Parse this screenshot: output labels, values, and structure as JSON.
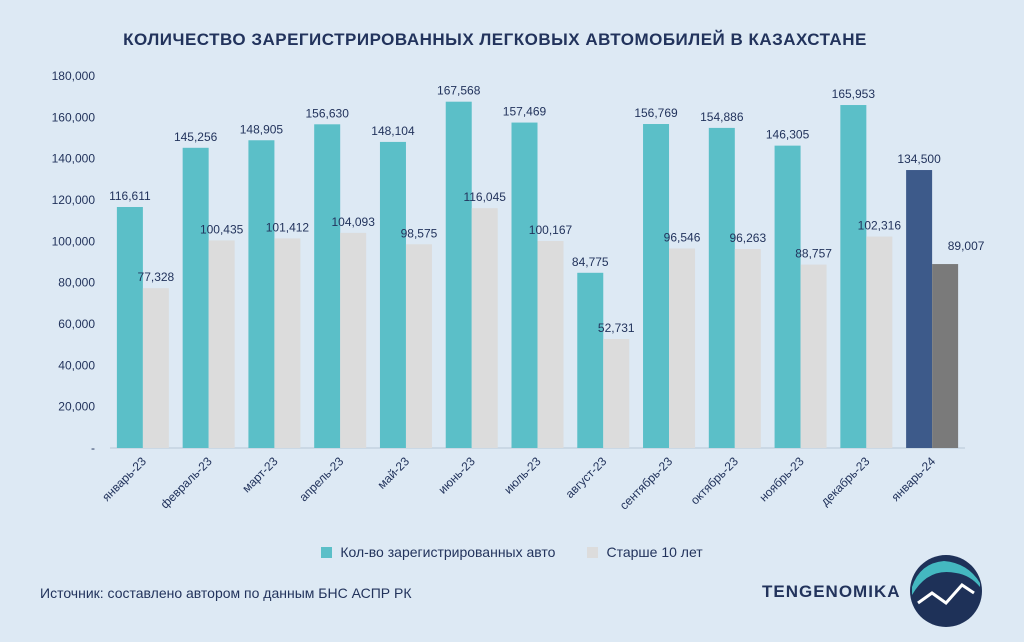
{
  "chart_data": {
    "type": "bar",
    "title": "КОЛИЧЕСТВО ЗАРЕГИСТРИРОВАННЫХ ЛЕГКОВЫХ АВТОМОБИЛЕЙ В КАЗАХСТАНЕ",
    "categories": [
      "январь-23",
      "февраль-23",
      "март-23",
      "апрель-23",
      "май-23",
      "июнь-23",
      "июль-23",
      "август-23",
      "сентябрь-23",
      "октябрь-23",
      "ноябрь-23",
      "декабрь-23",
      "январь-24"
    ],
    "series": [
      {
        "name": "Кол-во зарегистрированных авто",
        "values": [
          116611,
          145256,
          148905,
          156630,
          148104,
          167568,
          157469,
          84775,
          156769,
          154886,
          146305,
          165953,
          134500
        ],
        "labels": [
          "116,611",
          "145,256",
          "148,905",
          "156,630",
          "148,104",
          "167,568",
          "157,469",
          "84,775",
          "156,769",
          "154,886",
          "146,305",
          "165,953",
          "134,500"
        ],
        "color": "#5bbfc8",
        "highlight_color": "#3d5a8a"
      },
      {
        "name": "Старше 10 лет",
        "values": [
          77328,
          100435,
          101412,
          104093,
          98575,
          116045,
          100167,
          52731,
          96546,
          96263,
          88757,
          102316,
          89007
        ],
        "labels": [
          "77,328",
          "100,435",
          "101,412",
          "104,093",
          "98,575",
          "116,045",
          "100,167",
          "52,731",
          "96,546",
          "96,263",
          "88,757",
          "102,316",
          "89,007"
        ],
        "color": "#dcdcdc",
        "highlight_color": "#7a7a7a"
      }
    ],
    "ylim": [
      0,
      180000
    ],
    "yticks": [
      0,
      20000,
      40000,
      60000,
      80000,
      100000,
      120000,
      140000,
      160000,
      180000
    ],
    "ytick_labels": [
      "-",
      "20,000",
      "40,000",
      "60,000",
      "80,000",
      "100,000",
      "120,000",
      "140,000",
      "160,000",
      "180,000"
    ],
    "grid": false,
    "legend_position": "bottom"
  },
  "footer": {
    "source": "Источник: составлено автором по данным БНС АСПР РК",
    "brand": "TENGENOMIKA"
  },
  "colors": {
    "background": "#dde9f4",
    "text": "#22335c"
  }
}
